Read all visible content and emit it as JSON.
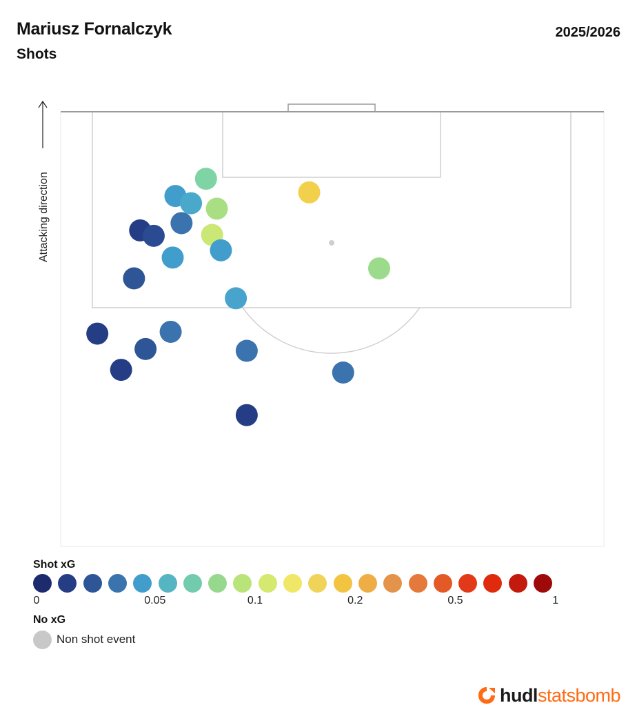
{
  "header": {
    "player_name": "Mariusz Fornalczyk",
    "subtitle": "Shots",
    "season": "2025/2026"
  },
  "pitch": {
    "direction_label": "Attacking direction",
    "line_color": "#cfcfcf",
    "goal_line_color": "#9a9a9a"
  },
  "legend": {
    "xg_title": "Shot xG",
    "xg_colors": [
      "#1c2a6e",
      "#253d85",
      "#2e5596",
      "#3a73ae",
      "#419dcc",
      "#55b5c3",
      "#73cbae",
      "#96d98e",
      "#b9e47a",
      "#d5e86f",
      "#efe765",
      "#f0d459",
      "#f3c342",
      "#eeae45",
      "#e4934a",
      "#e5783b",
      "#e45a27",
      "#e23a18",
      "#df2a0e",
      "#c21a0d",
      "#9e0a0a"
    ],
    "xg_ticks": [
      {
        "label": "0",
        "index": 0
      },
      {
        "label": "0.05",
        "index": 4.5
      },
      {
        "label": "0.1",
        "index": 8.5
      },
      {
        "label": "0.2",
        "index": 12.5
      },
      {
        "label": "0.5",
        "index": 16.5
      },
      {
        "label": "1",
        "index": 20.5
      }
    ],
    "noxg_title": "No xG",
    "noxg_label": "Non shot event",
    "noxg_color": "#c8c8c8"
  },
  "brand": {
    "part1": "hudl",
    "part2": "statsbomb",
    "accent": "#ff6a13"
  },
  "chart_data": {
    "type": "scatter",
    "x_axis": "pitch width (yards, 0-80)",
    "y_axis": "distance from goal line (yards)",
    "ylim": [
      0,
      48
    ],
    "xlim": [
      0,
      80
    ],
    "series": [
      {
        "points": [
          {
            "x": 21.4,
            "y": 7.4,
            "c": "#7ed4a4"
          },
          {
            "x": 16.9,
            "y": 9.3,
            "c": "#419dcc"
          },
          {
            "x": 19.2,
            "y": 10.1,
            "c": "#4aa9cb"
          },
          {
            "x": 23.0,
            "y": 10.7,
            "c": "#a9de82"
          },
          {
            "x": 36.6,
            "y": 8.9,
            "c": "#f2d04c"
          },
          {
            "x": 17.8,
            "y": 12.3,
            "c": "#3a73ae"
          },
          {
            "x": 11.7,
            "y": 13.1,
            "c": "#253d85"
          },
          {
            "x": 13.7,
            "y": 13.7,
            "c": "#2a4a92"
          },
          {
            "x": 22.3,
            "y": 13.6,
            "c": "#cbe776"
          },
          {
            "x": 23.6,
            "y": 15.3,
            "c": "#419dcc"
          },
          {
            "x": 16.5,
            "y": 16.1,
            "c": "#419dcc"
          },
          {
            "x": 46.9,
            "y": 17.3,
            "c": "#9bdb8b"
          },
          {
            "x": 10.8,
            "y": 18.4,
            "c": "#2e5596"
          },
          {
            "x": 25.8,
            "y": 20.6,
            "c": "#48a3cd"
          },
          {
            "x": 5.4,
            "y": 24.5,
            "c": "#253d85"
          },
          {
            "x": 16.2,
            "y": 24.3,
            "c": "#3a73ae"
          },
          {
            "x": 12.5,
            "y": 26.2,
            "c": "#2e5596"
          },
          {
            "x": 27.4,
            "y": 26.4,
            "c": "#3a73ae"
          },
          {
            "x": 8.9,
            "y": 28.5,
            "c": "#253d85"
          },
          {
            "x": 41.6,
            "y": 28.8,
            "c": "#3a73ae"
          },
          {
            "x": 27.4,
            "y": 33.5,
            "c": "#253d85"
          }
        ]
      }
    ]
  }
}
